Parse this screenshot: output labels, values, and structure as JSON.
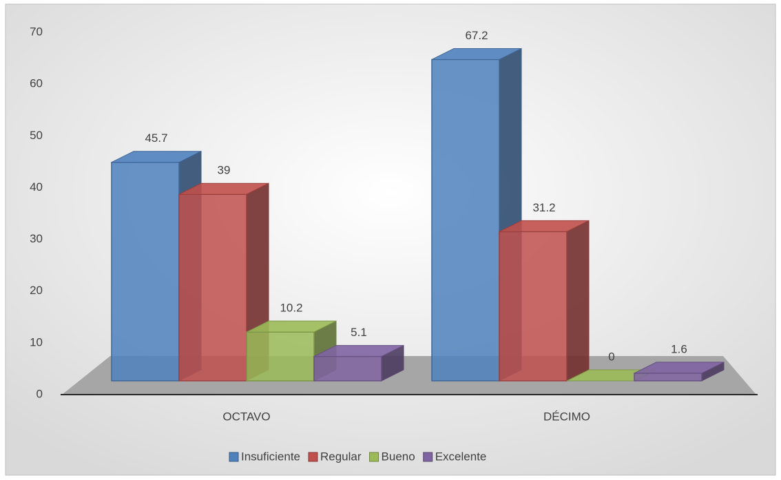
{
  "chart_data": {
    "type": "bar3d",
    "categories": [
      "OCTAVO",
      "DÉCIMO"
    ],
    "series": [
      {
        "name": "Insuficiente",
        "color": "#4f81bd",
        "values": [
          45.7,
          67.2
        ]
      },
      {
        "name": "Regular",
        "color": "#c0504d",
        "values": [
          39,
          31.2
        ]
      },
      {
        "name": "Bueno",
        "color": "#9bbb59",
        "values": [
          10.2,
          0
        ]
      },
      {
        "name": "Excelente",
        "color": "#8064a2",
        "values": [
          5.1,
          1.6
        ]
      }
    ],
    "ylim": [
      0,
      70
    ],
    "yticks": [
      0,
      10,
      20,
      30,
      40,
      50,
      60,
      70
    ],
    "legend": "bottom"
  }
}
